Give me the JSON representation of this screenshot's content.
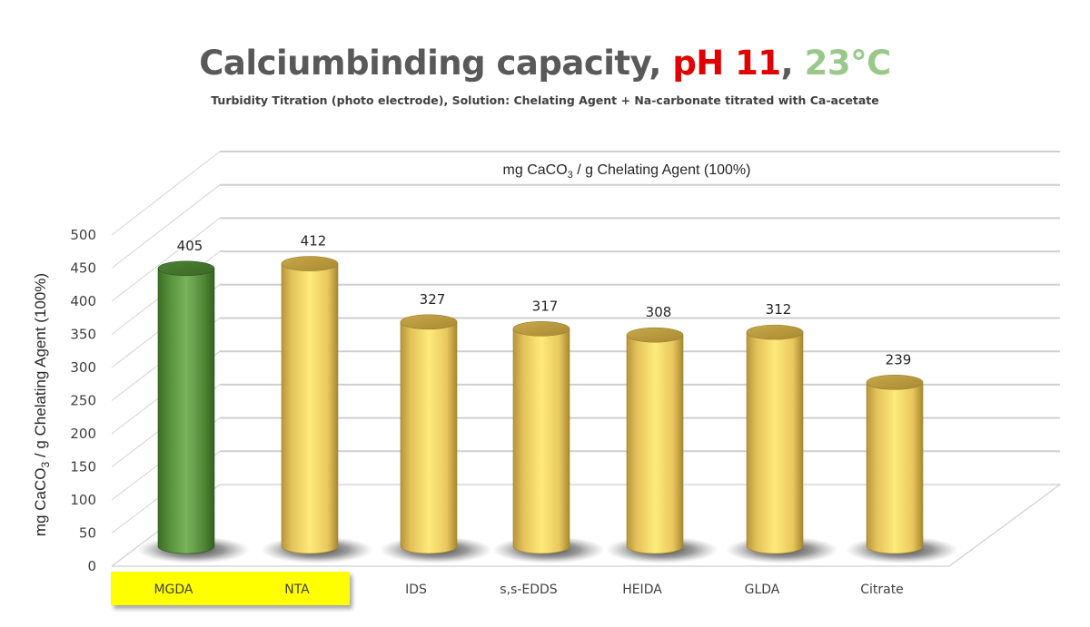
{
  "header": {
    "title_main": "Calciumbinding capacity, ",
    "title_ph": "pH 11",
    "title_sep": ", ",
    "title_temp": "23°C",
    "subtitle": "Turbidity Titration (photo electrode), Solution: Chelating Agent + Na-carbonate titrated with Ca-acetate"
  },
  "colors": {
    "title_gray": "#595959",
    "ph_red": "#e00000",
    "temp_green": "#99c98a",
    "bar_green": "#5a9a3a",
    "bar_yellow": "#f2d25c",
    "highlight_yellow": "#ffff00"
  },
  "chart_data": {
    "type": "bar",
    "style": "3d-cylinder",
    "title": "Calciumbinding capacity, pH 11, 23°C",
    "subtitle": "Turbidity Titration (photo electrode), Solution: Chelating Agent + Na-carbonate titrated with Ca-acetate",
    "inner_title": "mg CaCO3 / g Chelating Agent (100%)",
    "xlabel": "",
    "ylabel": "mg CaCO3 / g Chelating Agent (100%)",
    "ylim": [
      0,
      500
    ],
    "yticks": [
      0,
      50,
      100,
      150,
      200,
      250,
      300,
      350,
      400,
      450,
      500
    ],
    "grid": true,
    "legend": null,
    "categories": [
      "MGDA",
      "NTA",
      "IDS",
      "s,s-EDDS",
      "HEIDA",
      "GLDA",
      "Citrate"
    ],
    "values": [
      405,
      412,
      327,
      317,
      308,
      312,
      239
    ],
    "bar_colors": [
      "green",
      "yellow",
      "yellow",
      "yellow",
      "yellow",
      "yellow",
      "yellow"
    ],
    "highlighted_categories": [
      "MGDA",
      "NTA"
    ]
  },
  "labels": {
    "inner_title_prefix": "mg CaCO",
    "inner_title_sub": "3",
    "inner_title_suffix": " / g Chelating Agent (100%)",
    "ylabel_prefix": "mg CaCO",
    "ylabel_sub": "3",
    "ylabel_suffix": " / g Chelating Agent (100%)"
  }
}
